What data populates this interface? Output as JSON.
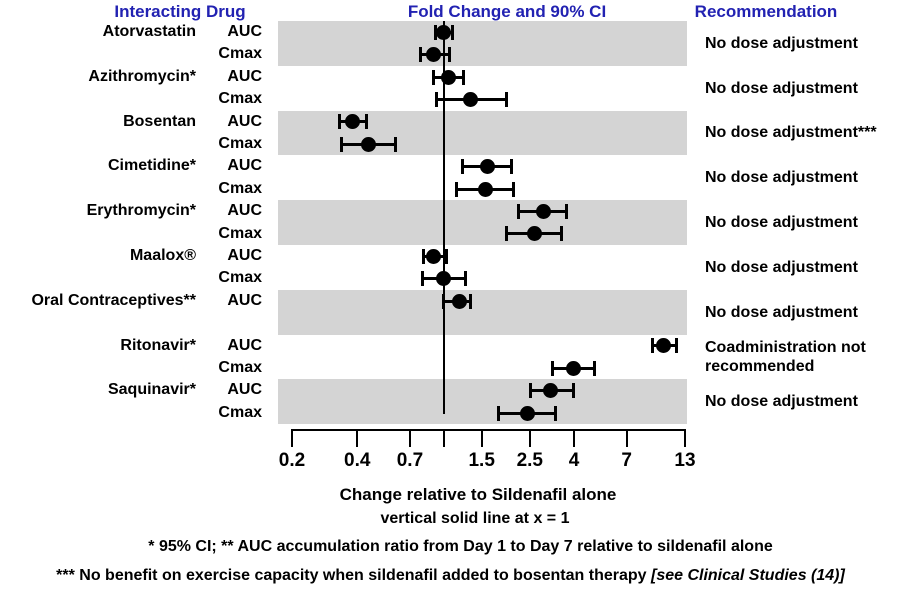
{
  "header": {
    "col1": "Interacting Drug",
    "col2": "Fold Change and 90% CI",
    "col3": "Recommendation",
    "accent_color": "#2222b2"
  },
  "chart_data": {
    "type": "scatter",
    "subtype": "forest-plot",
    "x_scale": "log",
    "x_range": [
      0.2,
      13
    ],
    "x_ticks": [
      0.2,
      0.4,
      0.7,
      1,
      1.5,
      2.5,
      4,
      7,
      13
    ],
    "x_tick_labels": [
      "0.2",
      "0.4",
      "0.7",
      "",
      "1.5",
      "2.5",
      "4",
      "7",
      "13"
    ],
    "reference_line_x": 1,
    "band_color": "#d4d4d4",
    "marker_color": "#000000",
    "xlabel_line1": "Change relative to Sildenafil alone",
    "xlabel_line2": "vertical solid line at x = 1",
    "groups": [
      {
        "drug": "Atorvastatin",
        "shaded": true,
        "recommendation": "No dose adjustment",
        "rows": [
          {
            "metric": "AUC",
            "value": 1.0,
            "lo": 0.92,
            "hi": 1.1
          },
          {
            "metric": "Cmax",
            "value": 0.9,
            "lo": 0.78,
            "hi": 1.06
          }
        ]
      },
      {
        "drug": "Azithromycin*",
        "shaded": false,
        "recommendation": "No dose adjustment",
        "rows": [
          {
            "metric": "AUC",
            "value": 1.05,
            "lo": 0.9,
            "hi": 1.23
          },
          {
            "metric": "Cmax",
            "value": 1.33,
            "lo": 0.93,
            "hi": 1.96
          }
        ]
      },
      {
        "drug": "Bosentan",
        "shaded": true,
        "recommendation": "No dose adjustment***",
        "rows": [
          {
            "metric": "AUC",
            "value": 0.38,
            "lo": 0.33,
            "hi": 0.44
          },
          {
            "metric": "Cmax",
            "value": 0.45,
            "lo": 0.34,
            "hi": 0.6
          }
        ]
      },
      {
        "drug": "Cimetidine*",
        "shaded": false,
        "recommendation": "No dose adjustment",
        "rows": [
          {
            "metric": "AUC",
            "value": 1.59,
            "lo": 1.22,
            "hi": 2.05
          },
          {
            "metric": "Cmax",
            "value": 1.56,
            "lo": 1.15,
            "hi": 2.1
          }
        ]
      },
      {
        "drug": "Erythromycin*",
        "shaded": true,
        "recommendation": "No dose adjustment",
        "rows": [
          {
            "metric": "AUC",
            "value": 2.88,
            "lo": 2.21,
            "hi": 3.7
          },
          {
            "metric": "Cmax",
            "value": 2.64,
            "lo": 1.95,
            "hi": 3.52
          }
        ]
      },
      {
        "drug": "Maalox®",
        "shaded": false,
        "recommendation": "No dose adjustment",
        "rows": [
          {
            "metric": "AUC",
            "value": 0.9,
            "lo": 0.81,
            "hi": 1.03
          },
          {
            "metric": "Cmax",
            "value": 1.0,
            "lo": 0.8,
            "hi": 1.26
          }
        ]
      },
      {
        "drug": "Oral Contraceptives**",
        "shaded": true,
        "recommendation": "No dose adjustment",
        "rows": [
          {
            "metric": "AUC",
            "value": 1.18,
            "lo": 1.0,
            "hi": 1.33
          },
          {
            "metric": "",
            "value": null,
            "lo": null,
            "hi": null
          }
        ]
      },
      {
        "drug": "Ritonavir*",
        "shaded": false,
        "recommendation": "Coadministration not recommended",
        "rows": [
          {
            "metric": "AUC",
            "value": 10.4,
            "lo": 9.2,
            "hi": 11.9
          },
          {
            "metric": "Cmax",
            "value": 3.96,
            "lo": 3.18,
            "hi": 4.96
          }
        ]
      },
      {
        "drug": "Saquinavir*",
        "shaded": true,
        "recommendation": "No dose adjustment",
        "rows": [
          {
            "metric": "AUC",
            "value": 3.13,
            "lo": 2.52,
            "hi": 3.97
          },
          {
            "metric": "Cmax",
            "value": 2.45,
            "lo": 1.79,
            "hi": 3.28
          }
        ]
      }
    ]
  },
  "footnotes": {
    "line1": "* 95% CI;  ** AUC accumulation ratio from Day 1 to Day 7 relative to sildenafil alone",
    "line2_main": "*** No benefit on exercise capacity when sildenafil added to bosentan therapy ",
    "line2_italic": "[see Clinical Studies (14)]"
  }
}
